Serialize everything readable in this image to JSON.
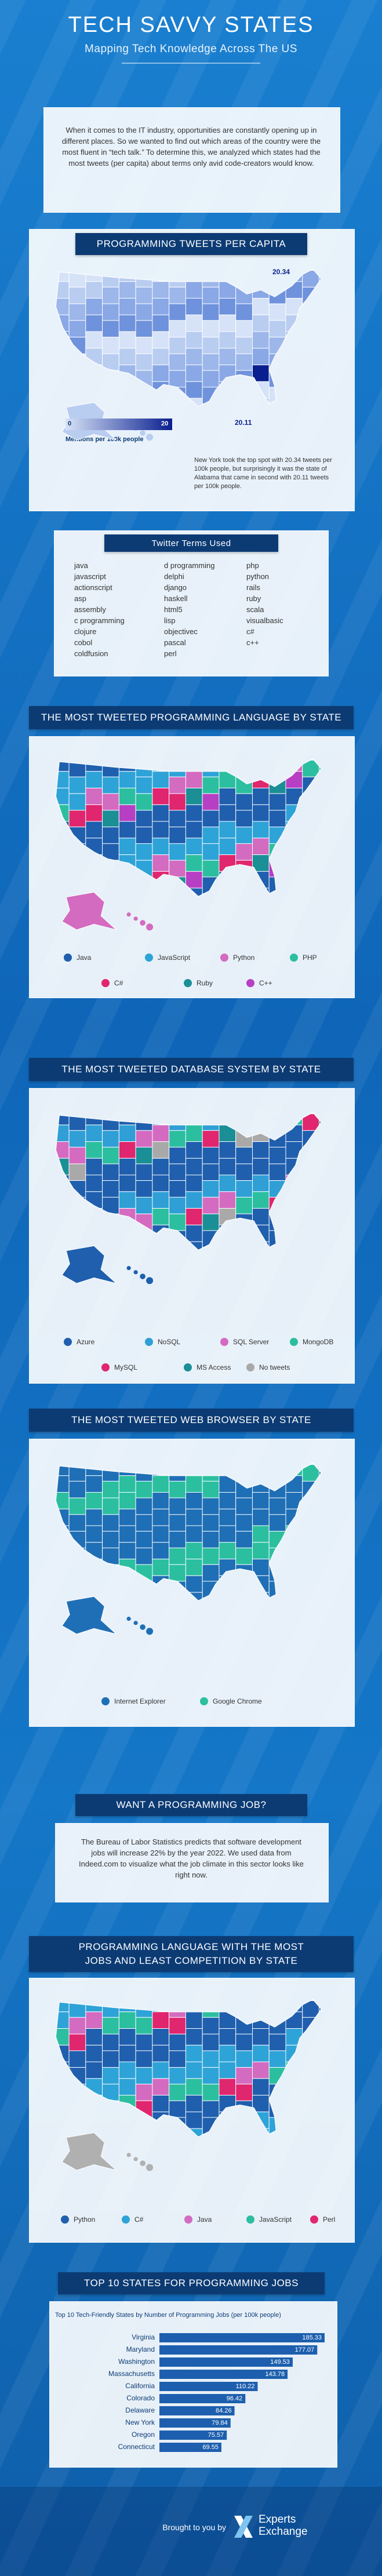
{
  "header": {
    "title": "TECH SAVVY STATES",
    "subtitle": "Mapping Tech Knowledge Across The US"
  },
  "intro": "When it comes to the IT industry, opportunities are constantly opening up in different places. So we wanted to find out which areas of the country were the most fluent in “tech talk.” To determine this, we analyzed which states had the most tweets (per capita) about terms only avid code-creators would know.",
  "tweets_per_capita": {
    "title": "PROGRAMMING TWEETS PER CAPITA",
    "scale": [
      0,
      20
    ],
    "scale_label": "Mentions per 100k people",
    "callouts": [
      20.34,
      20.11
    ],
    "note": "New York took the top spot with 20.34 tweets per 100k people, but surprisingly it was the state of Alabama that came in second with 20.11 tweets per 100k people."
  },
  "twitter_terms": {
    "title": "Twitter Terms Used",
    "columns": [
      [
        "java",
        "javascript",
        "actionscript",
        "asp",
        "assembly",
        "c programming",
        "clojure",
        "cobol",
        "coldfusion"
      ],
      [
        "d programming",
        "delphi",
        "django",
        "haskell",
        "html5",
        "lisp",
        "objectivec",
        "pascal",
        "perl"
      ],
      [
        "php",
        "python",
        "rails",
        "ruby",
        "scala",
        "visualbasic",
        "c#",
        "c++"
      ]
    ]
  },
  "language_map": {
    "title": "THE MOST TWEETED PROGRAMMING LANGUAGE BY STATE",
    "legend": [
      {
        "name": "Java",
        "color": "#1f5fae"
      },
      {
        "name": "JavaScript",
        "color": "#2ea3d8"
      },
      {
        "name": "Python",
        "color": "#d36bc0"
      },
      {
        "name": "PHP",
        "color": "#2bbfa0"
      },
      {
        "name": "C#",
        "color": "#e0266e"
      },
      {
        "name": "Ruby",
        "color": "#1a8f96"
      },
      {
        "name": "C++",
        "color": "#b73fc4"
      }
    ]
  },
  "database_map": {
    "title": "THE MOST TWEETED DATABASE SYSTEM BY STATE",
    "legend": [
      {
        "name": "Azure",
        "color": "#1f5fae"
      },
      {
        "name": "NoSQL",
        "color": "#2f9fd6"
      },
      {
        "name": "SQL Server",
        "color": "#d46bc1"
      },
      {
        "name": "MongoDB",
        "color": "#2bbfa0"
      },
      {
        "name": "MySQL",
        "color": "#e0266e"
      },
      {
        "name": "MS Access",
        "color": "#1a8f96"
      },
      {
        "name": "No tweets",
        "color": "#a9a9a9"
      }
    ]
  },
  "browser_map": {
    "title": "THE MOST TWEETED WEB BROWSER BY STATE",
    "legend": [
      {
        "name": "Internet Explorer",
        "color": "#1f6fb6"
      },
      {
        "name": "Google Chrome",
        "color": "#2bbfa0"
      }
    ]
  },
  "jobs": {
    "title": "WANT A PROGRAMMING JOB?",
    "text": "The Bureau of Labor Statistics predicts that software development jobs will increase 22% by the year 2022. We used data from Indeed.com to visualize what the job climate in this sector looks like right now."
  },
  "jobs_map": {
    "title": "PROGRAMMING LANGUAGE WITH THE MOST JOBS AND LEAST COMPETITION BY STATE",
    "legend": [
      {
        "name": "Python",
        "color": "#1f5fae"
      },
      {
        "name": "C#",
        "color": "#2ea3d8"
      },
      {
        "name": "Java",
        "color": "#d36bc0"
      },
      {
        "name": "JavaScript",
        "color": "#2bbfa0"
      },
      {
        "name": "Perl",
        "color": "#e0266e"
      }
    ]
  },
  "chart_data": {
    "type": "bar",
    "title": "TOP 10 STATES FOR PROGRAMMING JOBS",
    "subtitle": "Top 10 Tech-Friendly States by Number of Programming Jobs (per 100k people)",
    "categories": [
      "Virginia",
      "Maryland",
      "Washington",
      "Massachusetts",
      "California",
      "Colorado",
      "Delaware",
      "New York",
      "Oregon",
      "Connecticut"
    ],
    "values": [
      185.33,
      177.07,
      149.53,
      143.78,
      110.22,
      96.42,
      84.26,
      79.84,
      75.57,
      69.55
    ],
    "color": "#1d5fae"
  },
  "footer": {
    "credit": "Brought to you by",
    "brand": [
      "Experts",
      "Exchange"
    ]
  }
}
